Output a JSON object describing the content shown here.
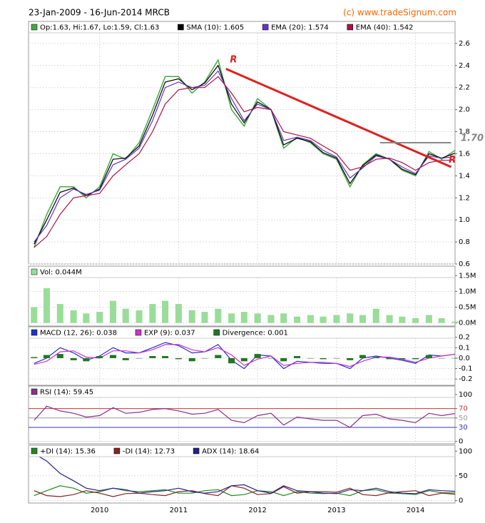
{
  "chart_data": [
    {
      "type": "line",
      "title": "23-Jan-2009 - 16-Jun-2014 MRCB",
      "source": "(c) www.tradeSignum.com",
      "x": [
        2009.17,
        2009.33,
        2009.5,
        2009.67,
        2009.83,
        2010,
        2010.17,
        2010.33,
        2010.5,
        2010.67,
        2010.83,
        2011,
        2011.17,
        2011.33,
        2011.5,
        2011.67,
        2011.83,
        2012,
        2012.17,
        2012.33,
        2012.5,
        2012.67,
        2012.83,
        2013,
        2013.17,
        2013.33,
        2013.5,
        2013.67,
        2013.83,
        2014,
        2014.17,
        2014.33,
        2014.5
      ],
      "series": [
        {
          "name": "Op:1.63, Hi:1.67, Lo:1.59, Cl:1.63",
          "color": "#44aa44",
          "values": [
            0.75,
            1.05,
            1.3,
            1.3,
            1.2,
            1.3,
            1.6,
            1.55,
            1.7,
            2.0,
            2.3,
            2.3,
            2.15,
            2.25,
            2.45,
            2.0,
            1.85,
            2.1,
            2.0,
            1.65,
            1.75,
            1.7,
            1.6,
            1.55,
            1.3,
            1.5,
            1.6,
            1.55,
            1.45,
            1.4,
            1.62,
            1.55,
            1.63
          ]
        },
        {
          "name": "SMA (10): 1.605",
          "color": "#000000",
          "values": [
            0.78,
            1.0,
            1.25,
            1.29,
            1.22,
            1.28,
            1.55,
            1.56,
            1.67,
            1.95,
            2.25,
            2.28,
            2.18,
            2.24,
            2.4,
            2.05,
            1.88,
            2.07,
            2.0,
            1.68,
            1.74,
            1.71,
            1.61,
            1.56,
            1.33,
            1.49,
            1.59,
            1.55,
            1.46,
            1.41,
            1.6,
            1.56,
            1.605
          ]
        },
        {
          "name": "EMA (20): 1.574",
          "color": "#6633cc",
          "values": [
            0.8,
            0.95,
            1.2,
            1.28,
            1.23,
            1.27,
            1.5,
            1.55,
            1.65,
            1.9,
            2.2,
            2.25,
            2.2,
            2.22,
            2.35,
            2.1,
            1.9,
            2.05,
            2.0,
            1.72,
            1.75,
            1.72,
            1.63,
            1.57,
            1.38,
            1.47,
            1.58,
            1.55,
            1.48,
            1.42,
            1.58,
            1.56,
            1.574
          ]
        },
        {
          "name": "EMA (40): 1.542",
          "color": "#aa1144",
          "values": [
            0.75,
            0.85,
            1.05,
            1.2,
            1.22,
            1.24,
            1.4,
            1.5,
            1.6,
            1.8,
            2.05,
            2.18,
            2.2,
            2.2,
            2.3,
            2.15,
            1.98,
            2.02,
            2.0,
            1.8,
            1.77,
            1.74,
            1.67,
            1.6,
            1.45,
            1.48,
            1.55,
            1.56,
            1.52,
            1.45,
            1.52,
            1.54,
            1.542
          ]
        }
      ],
      "xlim": [
        2009.1,
        2014.5
      ],
      "xticks": [
        2010,
        2011,
        2012,
        2013,
        2014
      ],
      "ylim": [
        0.6,
        2.8
      ],
      "yticks": [
        0.6,
        0.8,
        {
          "value": 1,
          "label": "1.0"
        },
        1.2,
        1.4,
        1.6,
        1.8,
        {
          "value": 2,
          "label": "2.0"
        },
        2.2,
        2.4,
        2.6
      ],
      "trendline": {
        "x": [
          2011.6,
          2014.45
        ],
        "y": [
          2.37,
          1.48
        ],
        "color": "#e02020"
      },
      "level": {
        "value": 1.7,
        "label": "1.70",
        "x": [
          2013.55,
          2014.45
        ],
        "color": "#888888"
      },
      "annotations": [
        {
          "text": "R",
          "x": 2011.65,
          "y": 2.45
        },
        {
          "text": "R",
          "x": 2014.42,
          "y": 1.54
        }
      ]
    },
    {
      "type": "bar",
      "x": [
        2009.17,
        2009.33,
        2009.5,
        2009.67,
        2009.83,
        2010,
        2010.17,
        2010.33,
        2010.5,
        2010.67,
        2010.83,
        2011,
        2011.17,
        2011.33,
        2011.5,
        2011.67,
        2011.83,
        2012,
        2012.17,
        2012.33,
        2012.5,
        2012.67,
        2012.83,
        2013,
        2013.17,
        2013.33,
        2013.5,
        2013.67,
        2013.83,
        2014,
        2014.17,
        2014.33,
        2014.5
      ],
      "series": [
        {
          "name": "Vol: 0.044M",
          "color": "#99dd99",
          "values": [
            0.5,
            1.1,
            0.6,
            0.4,
            0.3,
            0.35,
            0.7,
            0.45,
            0.4,
            0.6,
            0.7,
            0.6,
            0.4,
            0.35,
            0.45,
            0.3,
            0.35,
            0.3,
            0.25,
            0.3,
            0.2,
            0.25,
            0.2,
            0.25,
            0.3,
            0.25,
            0.45,
            0.25,
            0.2,
            0.15,
            0.25,
            0.15,
            0.044
          ]
        }
      ],
      "xlim": [
        2009.1,
        2014.5
      ],
      "xticks": [
        2010,
        2011,
        2012,
        2013,
        2014
      ],
      "ylim": [
        -0.1,
        1.8
      ],
      "yticks": [
        {
          "value": 0,
          "label": "0.0M"
        },
        {
          "value": 0.5,
          "label": "0.5M"
        },
        {
          "value": 1,
          "label": "1.0M"
        },
        {
          "value": 1.5,
          "label": "1.5M"
        }
      ]
    },
    {
      "type": "line",
      "x": [
        2009.17,
        2009.33,
        2009.5,
        2009.67,
        2009.83,
        2010,
        2010.17,
        2010.33,
        2010.5,
        2010.67,
        2010.83,
        2011,
        2011.17,
        2011.33,
        2011.5,
        2011.67,
        2011.83,
        2012,
        2012.17,
        2012.33,
        2012.5,
        2012.67,
        2012.83,
        2013,
        2013.17,
        2013.33,
        2013.5,
        2013.67,
        2013.83,
        2014,
        2014.17,
        2014.33,
        2014.5
      ],
      "series": [
        {
          "name": "MACD (12, 26): 0.038",
          "color": "#2233cc",
          "values": [
            -0.05,
            0.0,
            0.1,
            0.05,
            -0.02,
            0.02,
            0.1,
            0.05,
            0.05,
            0.1,
            0.15,
            0.12,
            0.05,
            0.06,
            0.13,
            -0.02,
            -0.1,
            0.03,
            0.02,
            -0.1,
            -0.03,
            -0.04,
            -0.05,
            -0.05,
            -0.1,
            0.0,
            0.02,
            0.0,
            -0.02,
            -0.05,
            0.03,
            0.02,
            0.038
          ]
        },
        {
          "name": "EXP (9): 0.037",
          "color": "#cc33cc",
          "values": [
            -0.06,
            -0.03,
            0.06,
            0.07,
            0.01,
            0.0,
            0.07,
            0.07,
            0.05,
            0.08,
            0.13,
            0.13,
            0.08,
            0.06,
            0.1,
            0.03,
            -0.07,
            -0.01,
            0.02,
            -0.07,
            -0.05,
            -0.04,
            -0.04,
            -0.05,
            -0.08,
            -0.03,
            0.01,
            0.01,
            -0.01,
            -0.04,
            0.0,
            0.02,
            0.037
          ]
        },
        {
          "name": "Divergence: 0.001",
          "color": "#227722",
          "type": "bar",
          "values": [
            0.01,
            0.03,
            0.04,
            -0.02,
            -0.03,
            0.02,
            0.03,
            -0.02,
            0.0,
            0.02,
            0.02,
            -0.01,
            -0.03,
            0.0,
            0.03,
            -0.05,
            -0.03,
            0.04,
            0.0,
            -0.03,
            0.02,
            0.0,
            -0.01,
            0.0,
            -0.02,
            0.03,
            0.01,
            -0.01,
            -0.01,
            -0.01,
            0.03,
            0.0,
            0.001
          ]
        }
      ],
      "xlim": [
        2009.1,
        2014.5
      ],
      "xticks": [
        2010,
        2011,
        2012,
        2013,
        2014
      ],
      "ylim": [
        -0.26,
        0.3
      ],
      "yticks": [
        -0.2,
        -0.1,
        {
          "value": 0,
          "label": "0.0"
        },
        0.1,
        0.2
      ]
    },
    {
      "type": "line",
      "x": [
        2009.17,
        2009.33,
        2009.5,
        2009.67,
        2009.83,
        2010,
        2010.17,
        2010.33,
        2010.5,
        2010.67,
        2010.83,
        2011,
        2011.17,
        2011.33,
        2011.5,
        2011.67,
        2011.83,
        2012,
        2012.17,
        2012.33,
        2012.5,
        2012.67,
        2012.83,
        2013,
        2013.17,
        2013.33,
        2013.5,
        2013.67,
        2013.83,
        2014,
        2014.17,
        2014.33,
        2014.5
      ],
      "series": [
        {
          "name": "RSI (14): 59.45",
          "color": "#883388",
          "values": [
            45,
            75,
            65,
            60,
            52,
            55,
            72,
            60,
            62,
            68,
            70,
            65,
            58,
            60,
            68,
            45,
            40,
            55,
            60,
            35,
            52,
            48,
            45,
            45,
            30,
            55,
            58,
            48,
            45,
            40,
            60,
            55,
            59.45
          ]
        }
      ],
      "xlim": [
        2009.1,
        2014.5
      ],
      "xticks": [
        2010,
        2011,
        2012,
        2013,
        2014
      ],
      "ylim": [
        -5,
        118
      ],
      "yticks": [
        0,
        30,
        50,
        70,
        100
      ],
      "ytick_colors": [
        "#dddddd",
        "#3333cc",
        "#999999",
        "#cc3333",
        "#dddddd"
      ]
    },
    {
      "type": "line",
      "x": [
        2009.17,
        2009.33,
        2009.5,
        2009.67,
        2009.83,
        2010,
        2010.17,
        2010.33,
        2010.5,
        2010.67,
        2010.83,
        2011,
        2011.17,
        2011.33,
        2011.5,
        2011.67,
        2011.83,
        2012,
        2012.17,
        2012.33,
        2012.5,
        2012.67,
        2012.83,
        2013,
        2013.17,
        2013.33,
        2013.5,
        2013.67,
        2013.83,
        2014,
        2014.17,
        2014.33,
        2014.5
      ],
      "series": [
        {
          "name": "+DI (14): 15.36",
          "color": "#228822",
          "values": [
            10,
            20,
            30,
            25,
            15,
            18,
            25,
            20,
            18,
            20,
            22,
            15,
            15,
            20,
            22,
            10,
            12,
            20,
            18,
            10,
            18,
            15,
            14,
            15,
            10,
            20,
            22,
            15,
            14,
            12,
            20,
            16,
            15.36
          ]
        },
        {
          "name": "-DI (14): 12.73",
          "color": "#882222",
          "values": [
            20,
            10,
            8,
            12,
            20,
            15,
            8,
            14,
            15,
            12,
            10,
            18,
            20,
            14,
            10,
            30,
            25,
            12,
            14,
            28,
            15,
            18,
            18,
            17,
            25,
            12,
            10,
            16,
            18,
            20,
            10,
            15,
            12.73
          ]
        },
        {
          "name": "ADX (14): 18.64",
          "color": "#222288",
          "values": [
            95,
            80,
            55,
            40,
            25,
            20,
            25,
            22,
            15,
            18,
            20,
            25,
            18,
            15,
            18,
            30,
            32,
            20,
            15,
            30,
            20,
            18,
            15,
            14,
            22,
            20,
            25,
            18,
            15,
            14,
            22,
            20,
            18.64
          ]
        }
      ],
      "xlim": [
        2009.1,
        2014.5
      ],
      "xticks": [
        2010,
        2011,
        2012,
        2013,
        2014
      ],
      "ylim": [
        -5,
        112
      ],
      "yticks": [
        0,
        50,
        100
      ]
    }
  ]
}
